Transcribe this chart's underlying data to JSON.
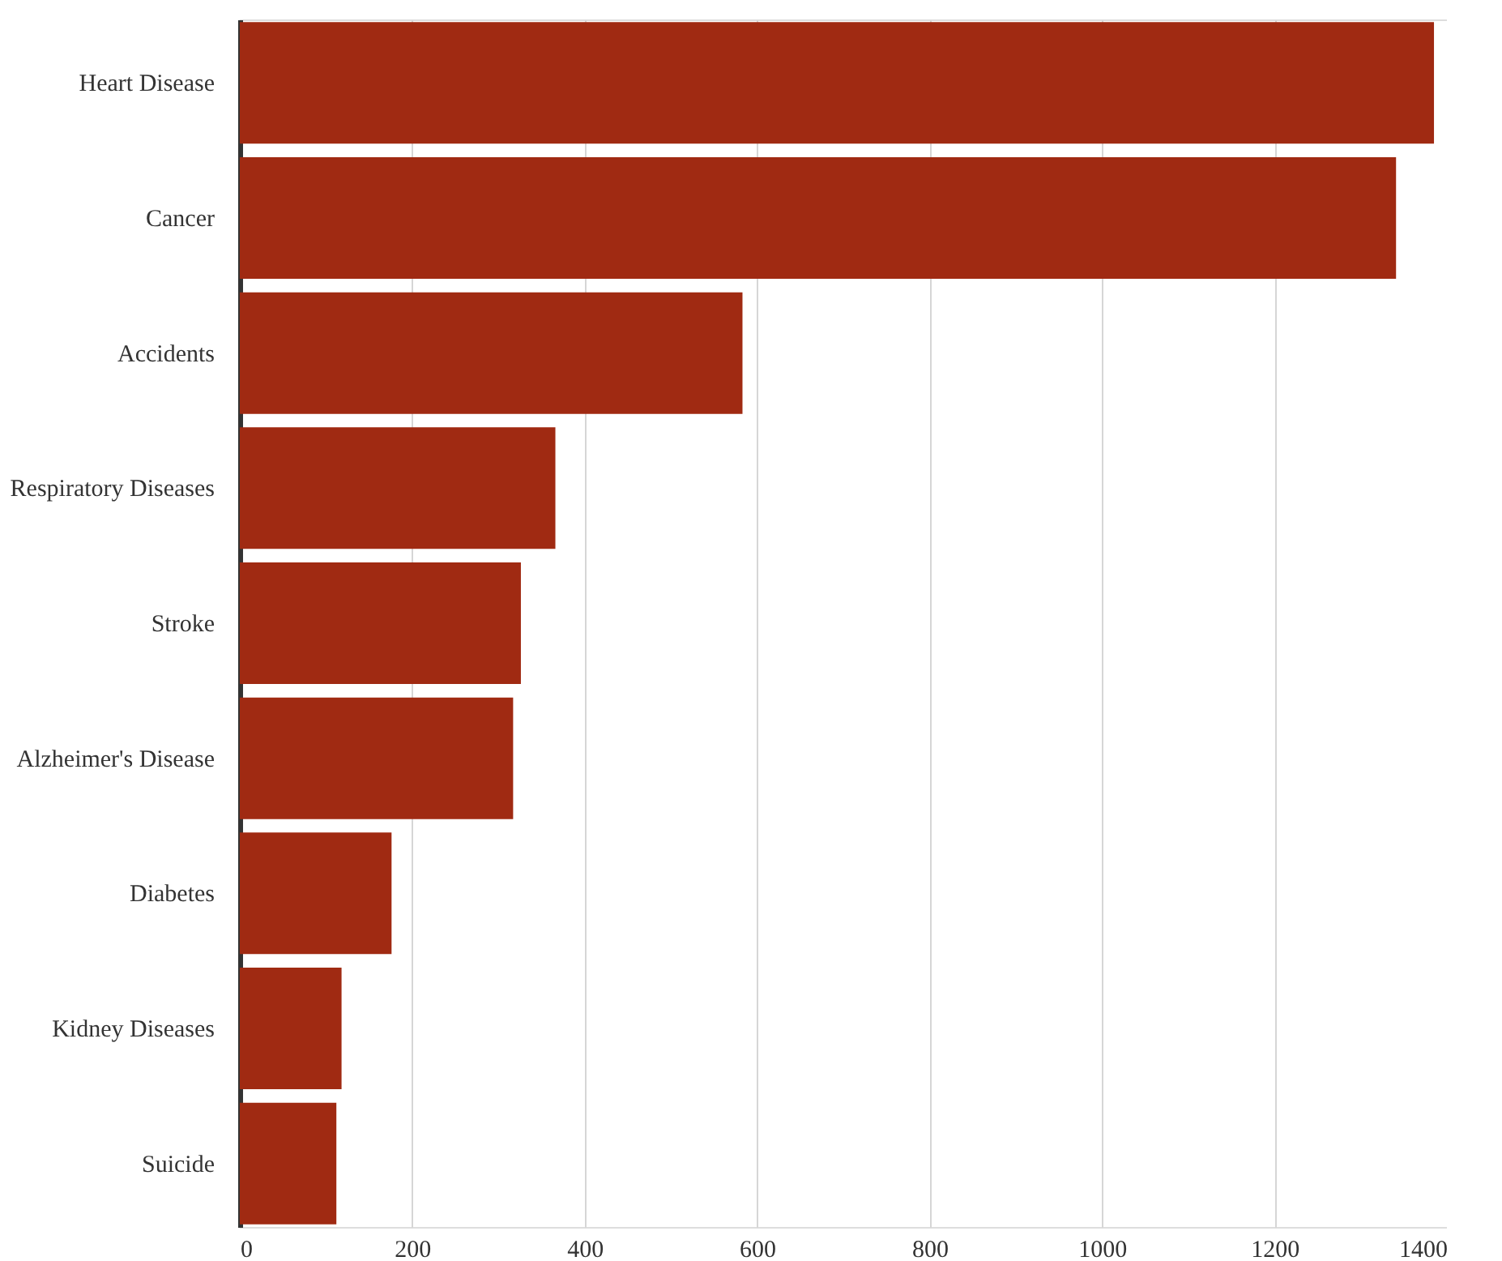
{
  "chart_data": {
    "type": "bar",
    "orientation": "horizontal",
    "categories": [
      "Heart Disease",
      "Cancer",
      "Accidents",
      "Respiratory Diseases",
      "Stroke",
      "Alzheimer's Disease",
      "Diabetes",
      "Kidney Diseases",
      "Suicide"
    ],
    "values": [
      1385,
      1341,
      583,
      366,
      326,
      317,
      176,
      118,
      112
    ],
    "color": "#a02a12",
    "xlim": [
      0,
      1400
    ],
    "xticks": [
      0,
      200,
      400,
      600,
      800,
      1000,
      1200,
      1400
    ],
    "grid": "x"
  }
}
